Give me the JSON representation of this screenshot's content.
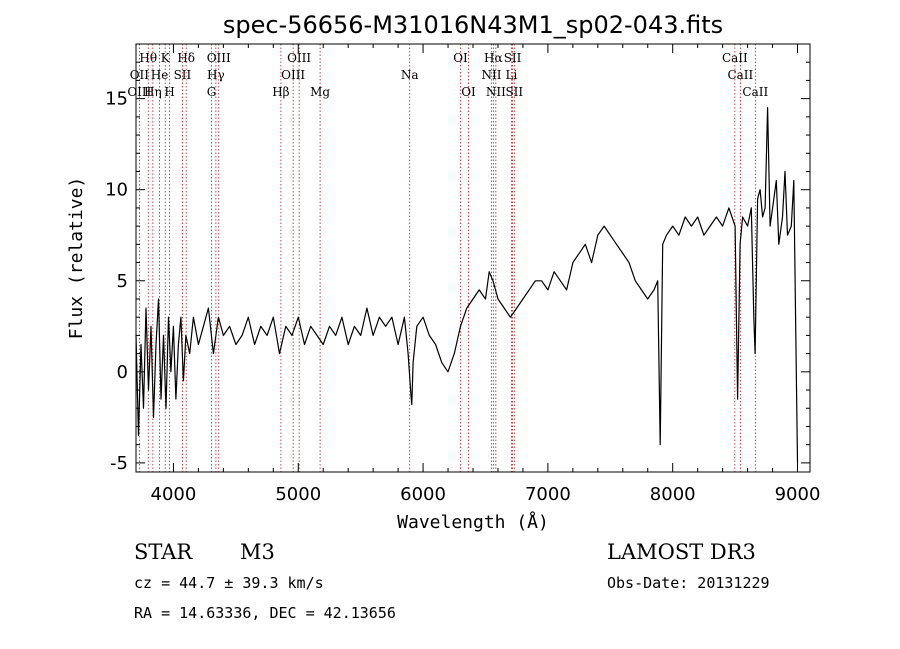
{
  "chart_data": {
    "type": "line",
    "title": "spec-56656-M31016N43M1_sp02-043.fits",
    "xlabel": "Wavelength (Å)",
    "ylabel": "Flux (relative)",
    "xlim": [
      3700,
      9100
    ],
    "ylim": [
      -5.5,
      18
    ],
    "x_ticks": [
      4000,
      5000,
      6000,
      7000,
      8000,
      9000
    ],
    "y_ticks": [
      -5,
      0,
      5,
      10,
      15
    ],
    "series": [
      {
        "name": "flux",
        "color": "#000000",
        "x": [
          3700,
          3720,
          3740,
          3760,
          3780,
          3800,
          3820,
          3840,
          3860,
          3880,
          3900,
          3920,
          3940,
          3960,
          3980,
          4000,
          4020,
          4040,
          4060,
          4080,
          4100,
          4130,
          4160,
          4200,
          4240,
          4280,
          4320,
          4360,
          4400,
          4450,
          4500,
          4550,
          4600,
          4650,
          4700,
          4750,
          4800,
          4850,
          4900,
          4950,
          5000,
          5050,
          5100,
          5150,
          5200,
          5250,
          5300,
          5350,
          5400,
          5450,
          5500,
          5550,
          5600,
          5650,
          5700,
          5750,
          5800,
          5850,
          5880,
          5900,
          5910,
          5920,
          5950,
          6000,
          6050,
          6100,
          6150,
          6200,
          6250,
          6300,
          6350,
          6400,
          6450,
          6500,
          6530,
          6560,
          6580,
          6600,
          6650,
          6700,
          6750,
          6800,
          6850,
          6900,
          6950,
          7000,
          7050,
          7100,
          7150,
          7200,
          7250,
          7300,
          7350,
          7400,
          7450,
          7500,
          7550,
          7600,
          7650,
          7700,
          7750,
          7800,
          7850,
          7880,
          7900,
          7920,
          7950,
          8000,
          8050,
          8100,
          8150,
          8200,
          8250,
          8300,
          8350,
          8400,
          8450,
          8500,
          8520,
          8540,
          8560,
          8600,
          8630,
          8650,
          8660,
          8680,
          8700,
          8720,
          8740,
          8760,
          8780,
          8800,
          8830,
          8850,
          8880,
          8900,
          8920,
          8950,
          8970,
          8990,
          9000
        ],
        "values": [
          2.0,
          -3.5,
          1.5,
          -2.0,
          3.5,
          -1.0,
          2.5,
          -2.5,
          1.5,
          4.0,
          -1.5,
          2.0,
          -2.0,
          3.0,
          0.0,
          2.5,
          -1.5,
          1.5,
          3.0,
          -0.5,
          2.0,
          1.0,
          3.0,
          1.5,
          2.5,
          3.5,
          1.0,
          3.0,
          2.0,
          2.5,
          1.5,
          2.0,
          3.0,
          1.5,
          2.5,
          2.0,
          3.0,
          1.0,
          2.5,
          2.0,
          3.0,
          1.5,
          2.5,
          2.0,
          1.5,
          2.5,
          2.0,
          3.0,
          1.5,
          2.5,
          2.0,
          3.5,
          2.0,
          3.0,
          2.5,
          3.0,
          1.5,
          3.0,
          1.0,
          -1.0,
          -1.8,
          0.5,
          2.5,
          3.0,
          2.0,
          1.5,
          0.5,
          0.0,
          1.0,
          2.5,
          3.5,
          4.0,
          4.5,
          4.0,
          5.5,
          5.0,
          4.5,
          4.0,
          3.5,
          3.0,
          3.5,
          4.0,
          4.5,
          5.0,
          5.0,
          4.5,
          5.5,
          5.0,
          4.5,
          6.0,
          6.5,
          7.0,
          6.0,
          7.5,
          8.0,
          7.5,
          7.0,
          6.5,
          6.0,
          5.0,
          4.5,
          4.0,
          4.5,
          5.0,
          -4.0,
          7.0,
          7.5,
          8.0,
          7.5,
          8.5,
          8.0,
          8.5,
          7.5,
          8.0,
          8.5,
          8.0,
          9.0,
          8.0,
          -1.5,
          7.0,
          8.5,
          8.0,
          9.0,
          3.0,
          1.0,
          9.5,
          10.0,
          8.5,
          9.0,
          14.5,
          8.0,
          9.0,
          10.5,
          7.0,
          8.5,
          11.0,
          7.5,
          8.0,
          10.5,
          0.0,
          -5.0
        ]
      }
    ],
    "line_labels": [
      {
        "text": "Hθ",
        "x": 3798,
        "row": 1
      },
      {
        "text": "K",
        "x": 3934,
        "row": 1
      },
      {
        "text": "Hδ",
        "x": 4102,
        "row": 1
      },
      {
        "text": "OIII",
        "x": 4363,
        "row": 1
      },
      {
        "text": "OIII",
        "x": 5007,
        "row": 1
      },
      {
        "text": "OI",
        "x": 6300,
        "row": 1
      },
      {
        "text": "Hα",
        "x": 6563,
        "row": 1
      },
      {
        "text": "SII",
        "x": 6717,
        "row": 1
      },
      {
        "text": "CaII",
        "x": 8498,
        "row": 1
      },
      {
        "text": "OII",
        "x": 3727,
        "row": 2
      },
      {
        "text": "He",
        "x": 3889,
        "row": 2
      },
      {
        "text": "SII",
        "x": 4072,
        "row": 2
      },
      {
        "text": "Hγ",
        "x": 4340,
        "row": 2
      },
      {
        "text": "OIII",
        "x": 4959,
        "row": 2
      },
      {
        "text": "Na",
        "x": 5893,
        "row": 2
      },
      {
        "text": "NII",
        "x": 6548,
        "row": 2
      },
      {
        "text": "Li",
        "x": 6708,
        "row": 2
      },
      {
        "text": "CaII",
        "x": 8542,
        "row": 2
      },
      {
        "text": "OIII",
        "x": 3727,
        "row": 3
      },
      {
        "text": "Hη",
        "x": 3835,
        "row": 3
      },
      {
        "text": "H",
        "x": 3969,
        "row": 3
      },
      {
        "text": "G",
        "x": 4305,
        "row": 3
      },
      {
        "text": "Hβ",
        "x": 4861,
        "row": 3
      },
      {
        "text": "Mg",
        "x": 5175,
        "row": 3
      },
      {
        "text": "OI",
        "x": 6364,
        "row": 3
      },
      {
        "text": "NII",
        "x": 6583,
        "row": 3
      },
      {
        "text": "SII",
        "x": 6731,
        "row": 3
      },
      {
        "text": "CaII",
        "x": 8662,
        "row": 3
      }
    ],
    "reference_lines": [
      3727,
      3798,
      3835,
      3889,
      3934,
      3969,
      4072,
      4102,
      4305,
      4340,
      4363,
      4861,
      4959,
      5007,
      5175,
      5893,
      6300,
      6364,
      6548,
      6563,
      6583,
      6708,
      6717,
      6731,
      8498,
      8542,
      8662
    ],
    "reference_line_color": "#b22222"
  },
  "info": {
    "object_class": "STAR",
    "subclass": "M3",
    "survey": "LAMOST DR3",
    "cz": "cz = 44.7 ± 39.3 km/s",
    "obs_date": "Obs-Date: 20131229",
    "coords": "RA =  14.63336, DEC =  42.13656"
  }
}
